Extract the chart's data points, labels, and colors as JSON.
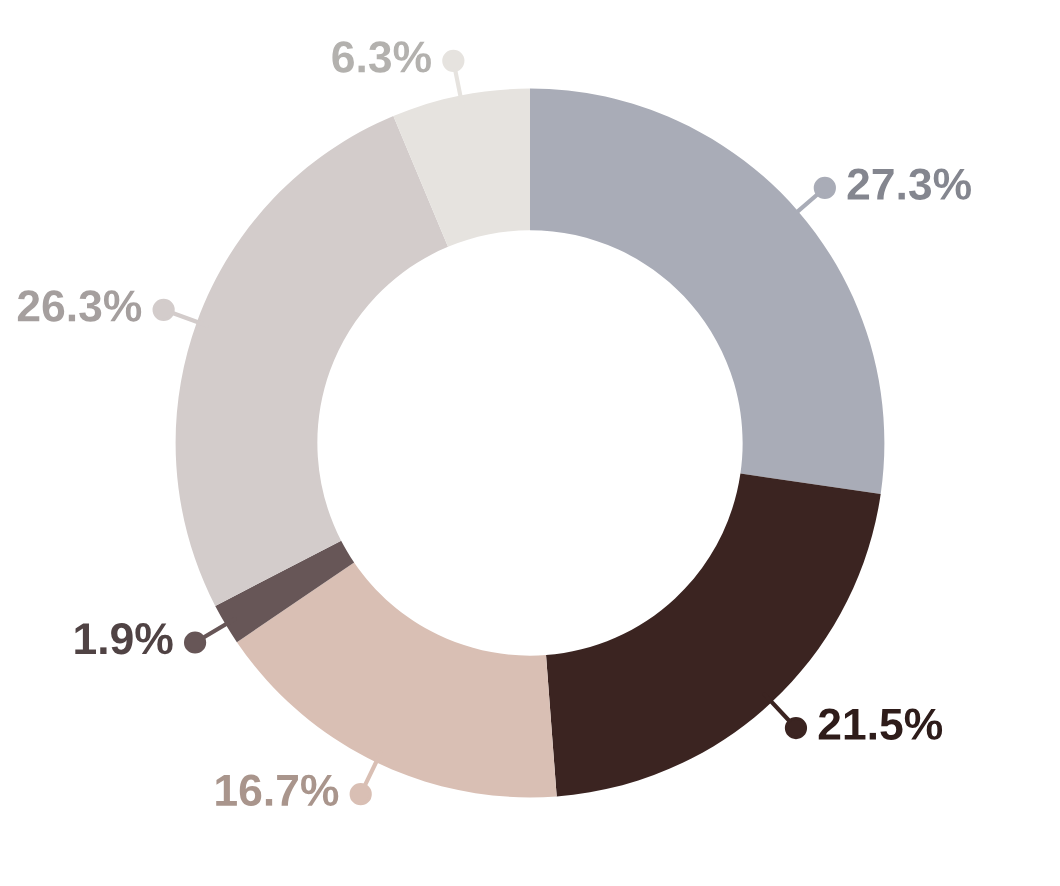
{
  "chart_data": {
    "type": "donut",
    "categories": [
      null,
      null,
      null,
      null,
      null,
      null
    ],
    "values": [
      27.3,
      21.5,
      16.7,
      1.9,
      26.3,
      6.3
    ],
    "colors": [
      "#a9acb7",
      "#3b2421",
      "#d9bfb4",
      "#675657",
      "#d3cccb",
      "#e6e3df"
    ],
    "value_labels": [
      "27.3%",
      "21.5%",
      "16.7%",
      "1.9%",
      "26.3%",
      "6.3%"
    ]
  }
}
